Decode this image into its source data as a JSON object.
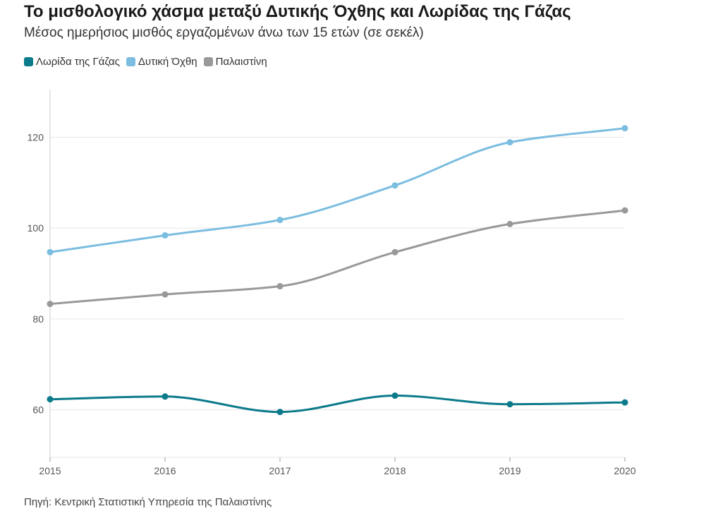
{
  "chart_data": {
    "type": "line",
    "title": "Το μισθολογικό χάσμα μεταξύ Δυτικής Όχθης και Λωρίδας της Γάζας",
    "subtitle": "Μέσος ημερήσιος μισθός εργαζομένων άνω των 15 ετών (σε σεκέλ)",
    "x": [
      "2015",
      "2016",
      "2017",
      "2018",
      "2019",
      "2020"
    ],
    "series": [
      {
        "name": "Λωρίδα της Γάζας",
        "color": "#0b7a8a",
        "values": [
          62.3,
          62.9,
          59.5,
          63.1,
          61.2,
          61.6
        ]
      },
      {
        "name": "Δυτική Όχθη",
        "color": "#7bbde0",
        "values": [
          94.7,
          98.4,
          101.8,
          109.4,
          118.9,
          122.0
        ]
      },
      {
        "name": "Παλαιστίνη",
        "color": "#999999",
        "values": [
          83.3,
          85.4,
          87.2,
          94.7,
          100.9,
          103.9
        ]
      }
    ],
    "y_ticks": [
      "60",
      "80",
      "100",
      "120"
    ],
    "ylim": [
      49.5,
      130.5
    ],
    "grid": true,
    "legend_placement": "top-left",
    "source": "Πηγή: Κεντρική Στατιστική Υπηρεσία της Παλαιστίνης"
  }
}
